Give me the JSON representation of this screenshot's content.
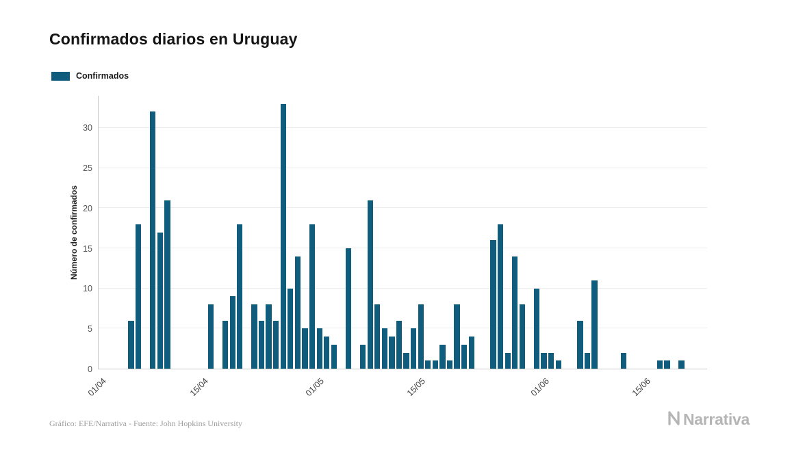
{
  "title": "Confirmados diarios en Uruguay",
  "legend": {
    "label": "Confirmados"
  },
  "footer": {
    "credit": "Gráfico: EFE/Narrativa - Fuente: John Hopkins University"
  },
  "logo": {
    "text": "Narrativa"
  },
  "colors": {
    "bar": "#0f5c7d",
    "grid": "#ececec",
    "axis": "#c9c9c9"
  },
  "chart_data": {
    "type": "bar",
    "title": "Confirmados diarios en Uruguay",
    "series_name": "Confirmados",
    "xlabel": "",
    "ylabel": "Número de confirmados",
    "ylim": [
      0,
      34
    ],
    "yticks": [
      0,
      5,
      10,
      15,
      20,
      25,
      30
    ],
    "xticks": [
      "01/04",
      "15/04",
      "01/05",
      "15/05",
      "01/06",
      "15/06"
    ],
    "grid": true,
    "legend_position": "top-left",
    "dates": [
      "01/04",
      "02/04",
      "03/04",
      "04/04",
      "05/04",
      "06/04",
      "07/04",
      "08/04",
      "09/04",
      "10/04",
      "11/04",
      "12/04",
      "13/04",
      "14/04",
      "15/04",
      "16/04",
      "17/04",
      "18/04",
      "19/04",
      "20/04",
      "21/04",
      "22/04",
      "23/04",
      "24/04",
      "25/04",
      "26/04",
      "27/04",
      "28/04",
      "29/04",
      "30/04",
      "01/05",
      "02/05",
      "03/05",
      "04/05",
      "05/05",
      "06/05",
      "07/05",
      "08/05",
      "09/05",
      "10/05",
      "11/05",
      "12/05",
      "13/05",
      "14/05",
      "15/05",
      "16/05",
      "17/05",
      "18/05",
      "19/05",
      "20/05",
      "21/05",
      "22/05",
      "23/05",
      "24/05",
      "25/05",
      "26/05",
      "27/05",
      "28/05",
      "29/05",
      "30/05",
      "31/05",
      "01/06",
      "02/06",
      "03/06",
      "04/06",
      "05/06",
      "06/06",
      "07/06",
      "08/06",
      "09/06",
      "10/06",
      "11/06",
      "12/06",
      "13/06",
      "14/06",
      "15/06",
      "16/06",
      "17/06",
      "18/06",
      "19/06",
      "20/06",
      "21/06",
      "22/06",
      "23/06"
    ],
    "values": [
      0,
      0,
      0,
      0,
      6,
      18,
      0,
      32,
      17,
      21,
      0,
      0,
      0,
      0,
      0,
      8,
      0,
      6,
      9,
      18,
      0,
      8,
      6,
      8,
      6,
      33,
      10,
      14,
      5,
      18,
      5,
      4,
      3,
      0,
      15,
      0,
      3,
      21,
      8,
      5,
      4,
      6,
      2,
      5,
      8,
      1,
      1,
      3,
      1,
      8,
      3,
      4,
      0,
      0,
      16,
      18,
      2,
      14,
      8,
      0,
      10,
      2,
      2,
      1,
      0,
      0,
      6,
      2,
      11,
      0,
      0,
      0,
      2,
      0,
      0,
      0,
      0,
      1,
      1,
      0,
      1,
      0,
      0,
      0
    ]
  }
}
